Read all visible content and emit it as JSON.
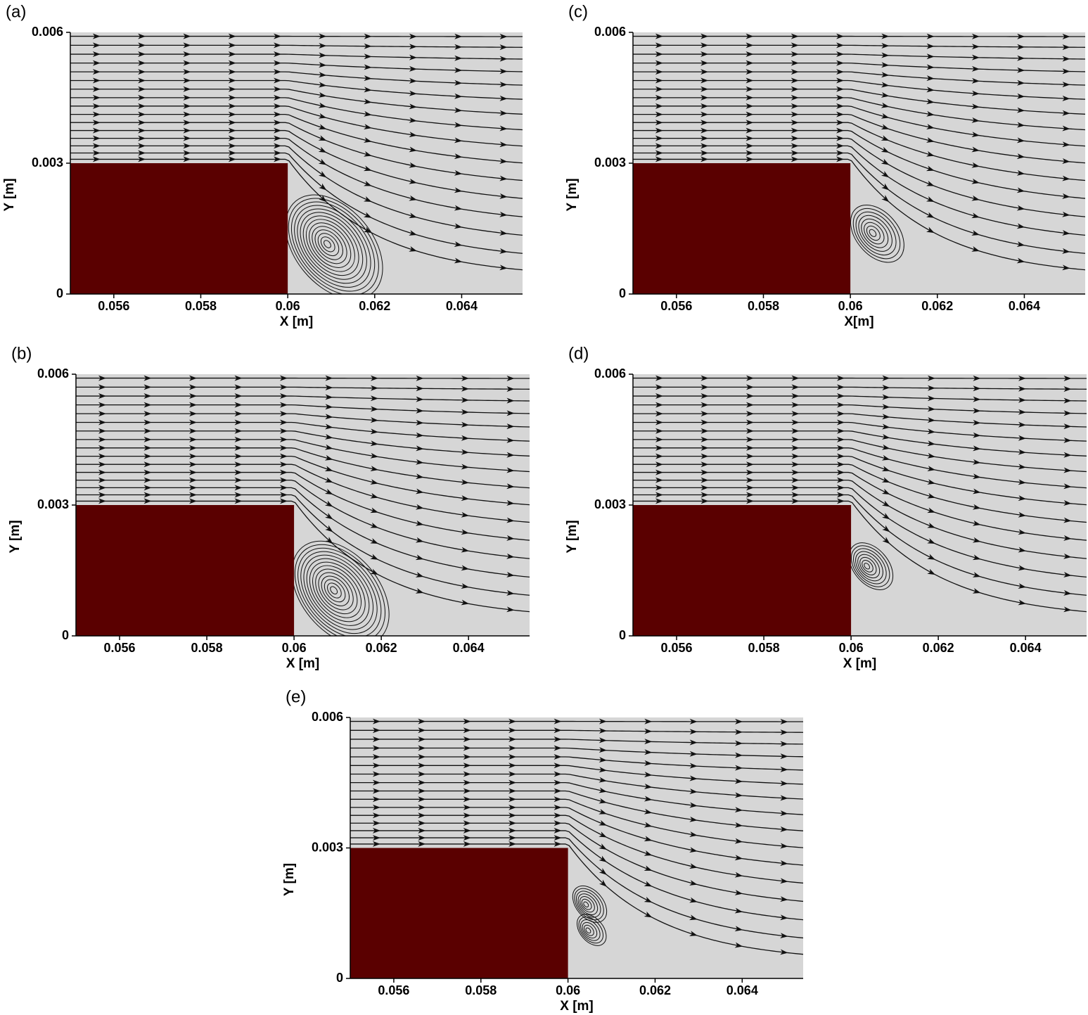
{
  "chart_data": [
    {
      "type": "streamline",
      "panel_label": "(a)",
      "x_label": "X [m]",
      "y_label": "Y [m]",
      "xlim": [
        0.055,
        0.0654
      ],
      "ylim": [
        0,
        0.006
      ],
      "xticks": [
        0.056,
        0.058,
        0.06,
        0.062,
        0.064
      ],
      "yticks": [
        0,
        0.003,
        0.006
      ],
      "background": "#d6d6d6",
      "line_color": "#111111",
      "obstacle": {
        "x": [
          0.055,
          0.06
        ],
        "y": [
          0,
          0.003
        ],
        "color": "#5a0000"
      }
    },
    {
      "type": "streamline",
      "panel_label": "(b)",
      "x_label": "X [m]",
      "y_label": "Y [m]",
      "xlim": [
        0.055,
        0.0654
      ],
      "ylim": [
        0,
        0.006
      ],
      "xticks": [
        0.056,
        0.058,
        0.06,
        0.062,
        0.064
      ],
      "yticks": [
        0,
        0.003,
        0.006
      ],
      "background": "#d6d6d6",
      "line_color": "#111111",
      "obstacle": {
        "x": [
          0.055,
          0.06
        ],
        "y": [
          0,
          0.003
        ],
        "color": "#5a0000"
      }
    },
    {
      "type": "streamline",
      "panel_label": "(c)",
      "x_label": "X[m]",
      "y_label": "Y [m]",
      "xlim": [
        0.055,
        0.0654
      ],
      "ylim": [
        0,
        0.006
      ],
      "xticks": [
        0.056,
        0.058,
        0.06,
        0.062,
        0.064
      ],
      "yticks": [
        0,
        0.003,
        0.006
      ],
      "background": "#d6d6d6",
      "line_color": "#111111",
      "obstacle": {
        "x": [
          0.055,
          0.06
        ],
        "y": [
          0,
          0.003
        ],
        "color": "#5a0000"
      }
    },
    {
      "type": "streamline",
      "panel_label": "(d)",
      "x_label": "X [m]",
      "y_label": "Y [m]",
      "xlim": [
        0.055,
        0.0654
      ],
      "ylim": [
        0,
        0.006
      ],
      "xticks": [
        0.056,
        0.058,
        0.06,
        0.062,
        0.064
      ],
      "yticks": [
        0,
        0.003,
        0.006
      ],
      "background": "#d6d6d6",
      "line_color": "#111111",
      "obstacle": {
        "x": [
          0.055,
          0.06
        ],
        "y": [
          0,
          0.003
        ],
        "color": "#5a0000"
      }
    },
    {
      "type": "streamline",
      "panel_label": "(e)",
      "x_label": "X [m]",
      "y_label": "Y [m]",
      "xlim": [
        0.055,
        0.0654
      ],
      "ylim": [
        0,
        0.006
      ],
      "xticks": [
        0.056,
        0.058,
        0.06,
        0.062,
        0.064
      ],
      "yticks": [
        0,
        0.003,
        0.006
      ],
      "background": "#d6d6d6",
      "line_color": "#111111",
      "obstacle": {
        "x": [
          0.055,
          0.06
        ],
        "y": [
          0,
          0.003
        ],
        "color": "#5a0000"
      }
    }
  ]
}
